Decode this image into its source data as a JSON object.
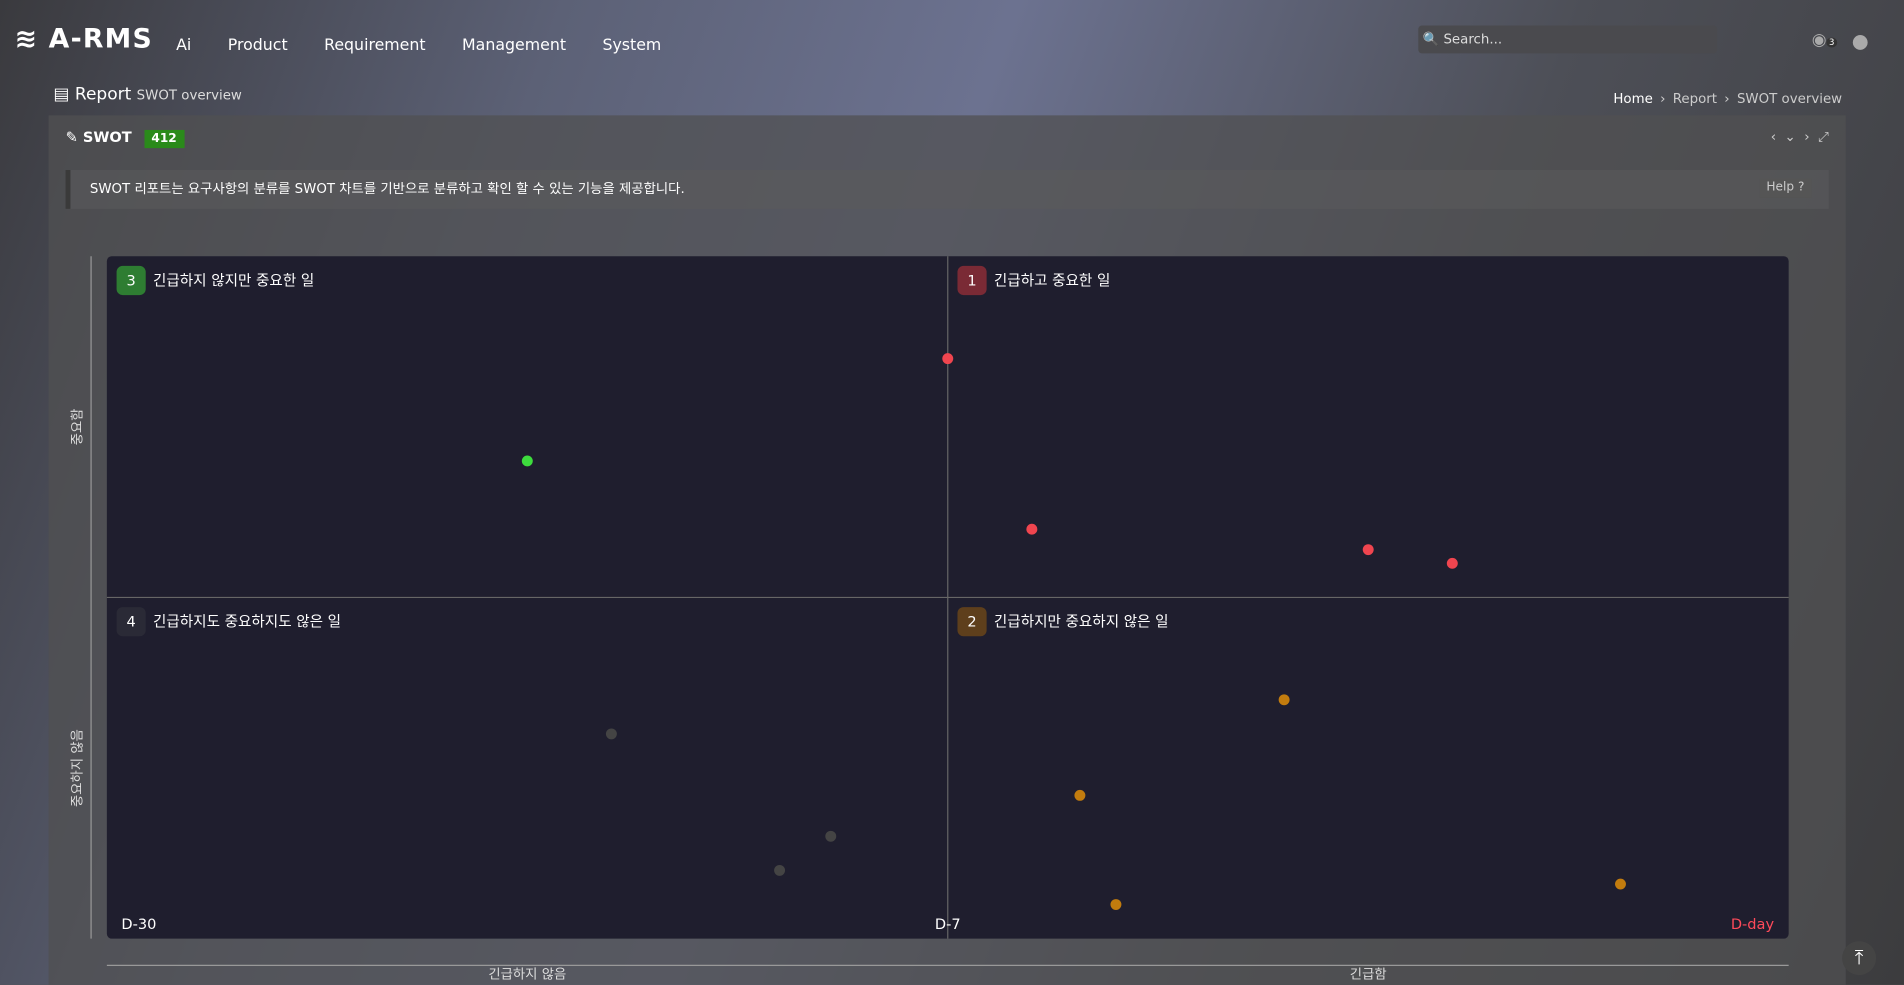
{
  "header": {
    "logo": "A-RMS",
    "nav": [
      "Ai",
      "Product",
      "Requirement",
      "Management",
      "System"
    ],
    "search_placeholder": "Search...",
    "notification_count": 3
  },
  "page": {
    "title": "Report",
    "subtitle": "SWOT overview",
    "breadcrumb": [
      "Home",
      "Report",
      "SWOT overview"
    ]
  },
  "panel": {
    "title": "SWOT",
    "badge": 412,
    "description": "SWOT 리포트는 요구사항의 분류를 SWOT 차트를 기반으로 분류하고 확인 할 수 있는 기능을 제공합니다.",
    "help": "Help"
  },
  "chart_data": {
    "type": "scatter",
    "xlim": [
      -30,
      0
    ],
    "xticks": [
      {
        "value": -30,
        "label": "D-30"
      },
      {
        "value": -7,
        "label": "D-7"
      },
      {
        "value": 0,
        "label": "D-day"
      }
    ],
    "ylim": [
      0,
      100
    ],
    "y_axis_labels": [
      "중요함",
      "중요하지 않음"
    ],
    "x_axis_labels": [
      "긴급하지 않음",
      "긴급함"
    ],
    "series": [
      {
        "name": "긴급하고 중요한 일",
        "badge": "1",
        "quadrant": "top-right",
        "badge_color": "#7a2a35",
        "color": "#f0454f",
        "x": [
          -7,
          -6.3,
          -3.5,
          -2.8
        ],
        "values": [
          85,
          60,
          57,
          55
        ]
      },
      {
        "name": "긴급하지만 중요하지 않은 일",
        "badge": "2",
        "quadrant": "bottom-right",
        "badge_color": "#5e3f1c",
        "color": "#c27c0e",
        "x": [
          -4.2,
          -5.9,
          -5.6,
          -1.4
        ],
        "values": [
          35,
          21,
          5,
          8
        ]
      },
      {
        "name": "긴급하지 않지만 중요한 일",
        "badge": "3",
        "quadrant": "top-left",
        "badge_color": "#2e7d32",
        "color": "#3ddc3d",
        "x": [
          -18.5
        ],
        "values": [
          70
        ]
      },
      {
        "name": "긴급하지도 중요하지도 않은 일",
        "badge": "4",
        "quadrant": "bottom-left",
        "badge_color": "#2a2a36",
        "color": "#444444",
        "x": [
          -16.2,
          -10.2,
          -11.6
        ],
        "values": [
          30,
          15,
          10
        ]
      }
    ]
  }
}
